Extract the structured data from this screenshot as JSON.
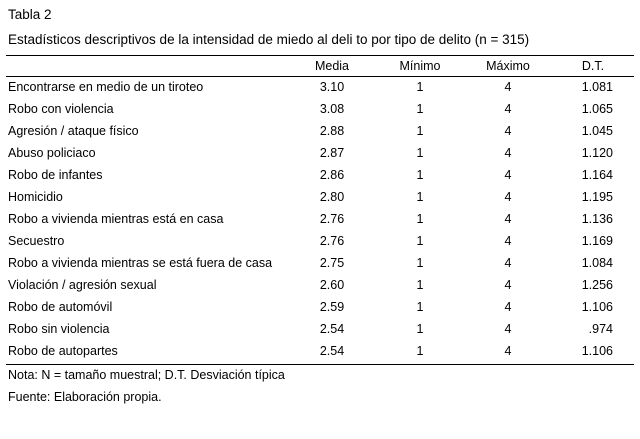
{
  "table": {
    "number": "Tabla 2",
    "title": "Estadísticos descriptivos de la intensidad de miedo al deli to por tipo de delito (n = 315)",
    "columns": [
      "",
      "Media",
      "Mínimo",
      "Máximo",
      "D.T."
    ],
    "rows": [
      {
        "label": "Encontrarse en medio de un tiroteo",
        "media": "3.10",
        "minimo": "1",
        "maximo": "4",
        "dt": "1.081"
      },
      {
        "label": "Robo con violencia",
        "media": "3.08",
        "minimo": "1",
        "maximo": "4",
        "dt": "1.065"
      },
      {
        "label": "Agresión / ataque físico",
        "media": "2.88",
        "minimo": "1",
        "maximo": "4",
        "dt": "1.045"
      },
      {
        "label": "Abuso policiaco",
        "media": "2.87",
        "minimo": "1",
        "maximo": "4",
        "dt": "1.120"
      },
      {
        "label": "Robo de infantes",
        "media": "2.86",
        "minimo": "1",
        "maximo": "4",
        "dt": "1.164"
      },
      {
        "label": "Homicidio",
        "media": "2.80",
        "minimo": "1",
        "maximo": "4",
        "dt": "1.195"
      },
      {
        "label": "Robo a vivienda mientras está en casa",
        "media": "2.76",
        "minimo": "1",
        "maximo": "4",
        "dt": "1.136"
      },
      {
        "label": "Secuestro",
        "media": "2.76",
        "minimo": "1",
        "maximo": "4",
        "dt": "1.169"
      },
      {
        "label": "Robo a vivienda mientras se está fuera de casa",
        "media": "2.75",
        "minimo": "1",
        "maximo": "4",
        "dt": "1.084"
      },
      {
        "label": "Violación / agresión sexual",
        "media": "2.60",
        "minimo": "1",
        "maximo": "4",
        "dt": "1.256"
      },
      {
        "label": "Robo de automóvil",
        "media": "2.59",
        "minimo": "1",
        "maximo": "4",
        "dt": "1.106"
      },
      {
        "label": "Robo sin violencia",
        "media": "2.54",
        "minimo": "1",
        "maximo": "4",
        "dt": ".974"
      },
      {
        "label": "Robo de autopartes",
        "media": "2.54",
        "minimo": "1",
        "maximo": "4",
        "dt": "1.106"
      }
    ],
    "note": "Nota: N = tamaño muestral; D.T. Desviación típica",
    "source": "Fuente: Elaboración propia."
  }
}
